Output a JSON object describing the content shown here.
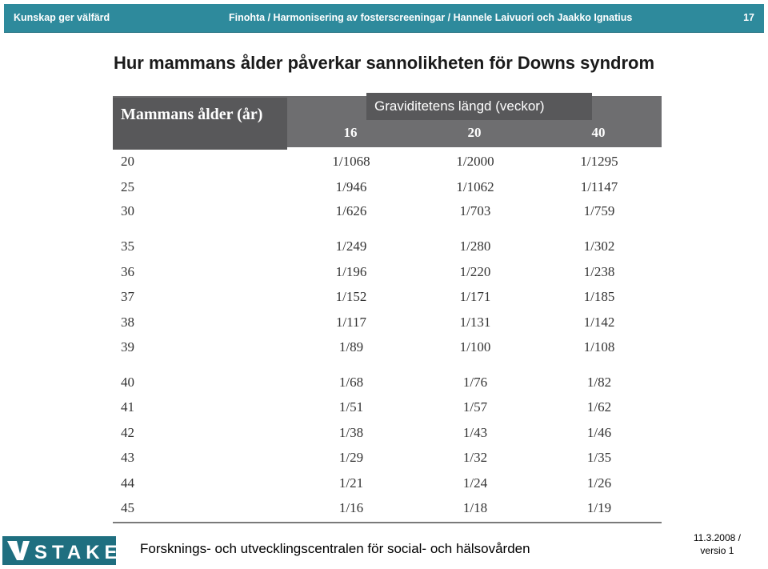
{
  "header": {
    "left_label": "Kunskap ger välfärd",
    "breadcrumb": "Finohta / Harmonisering av fosterscreeningar / Hannele Laivuori och Jaakko Ignatius",
    "page_number": "17"
  },
  "slide": {
    "title": "Hur mammans ålder påverkar sannolikheten för Downs syndrom"
  },
  "table": {
    "age_header": "Mammans ålder (år)",
    "weeks_header": "Graviditetens längd (veckor)",
    "week_columns": [
      "16",
      "20",
      "40"
    ],
    "rows": [
      {
        "age": "20",
        "w16": "1/1068",
        "w20": "1/2000",
        "w40": "1/1295"
      },
      {
        "age": "25",
        "w16": "1/946",
        "w20": "1/1062",
        "w40": "1/1147"
      },
      {
        "age": "30",
        "w16": "1/626",
        "w20": "1/703",
        "w40": "1/759"
      },
      {
        "age": "35",
        "w16": "1/249",
        "w20": "1/280",
        "w40": "1/302"
      },
      {
        "age": "36",
        "w16": "1/196",
        "w20": "1/220",
        "w40": "1/238"
      },
      {
        "age": "37",
        "w16": "1/152",
        "w20": "1/171",
        "w40": "1/185"
      },
      {
        "age": "38",
        "w16": "1/117",
        "w20": "1/131",
        "w40": "1/142"
      },
      {
        "age": "39",
        "w16": "1/89",
        "w20": "1/100",
        "w40": "1/108"
      },
      {
        "age": "40",
        "w16": "1/68",
        "w20": "1/76",
        "w40": "1/82"
      },
      {
        "age": "41",
        "w16": "1/51",
        "w20": "1/57",
        "w40": "1/62"
      },
      {
        "age": "42",
        "w16": "1/38",
        "w20": "1/43",
        "w40": "1/46"
      },
      {
        "age": "43",
        "w16": "1/29",
        "w20": "1/32",
        "w40": "1/35"
      },
      {
        "age": "44",
        "w16": "1/21",
        "w20": "1/24",
        "w40": "1/26"
      },
      {
        "age": "45",
        "w16": "1/16",
        "w20": "1/18",
        "w40": "1/19"
      }
    ]
  },
  "footer": {
    "logo_text": "STAKES",
    "organization": "Forsknings- och utvecklingscentralen för social- och hälsovården",
    "date": "11.3.2008 /",
    "version": "versio 1"
  },
  "colors": {
    "header_bar": "#2e8a9c",
    "table_header": "#6e6e70",
    "table_header_dark": "#58585a",
    "logo": "#1f6f80"
  }
}
